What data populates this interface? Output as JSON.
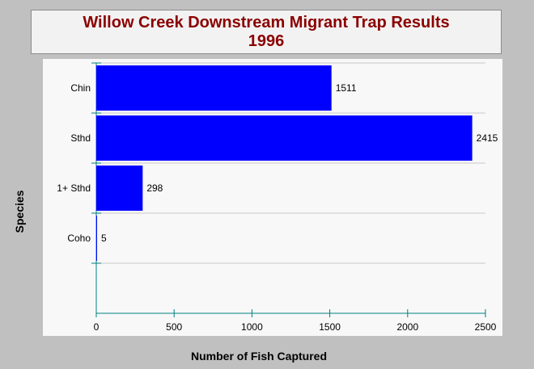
{
  "chart_title": {
    "line1": "Willow Creek Downstream Migrant Trap Results",
    "line2": "1996"
  },
  "colors": {
    "bar": "#0000ff",
    "title": "#8b0000",
    "axis": "#008080",
    "grid": "#c8c8c8"
  },
  "chart_data": {
    "type": "bar",
    "orientation": "horizontal",
    "categories": [
      "Chin",
      "Sthd",
      "1+ Sthd",
      "Coho"
    ],
    "values": [
      1511,
      2415,
      298,
      5
    ],
    "xlabel": "Number of Fish Captured",
    "ylabel": "Species",
    "xlim": [
      0,
      2500
    ],
    "xticks": [
      0,
      500,
      1000,
      1500,
      2000,
      2500
    ],
    "grid": true,
    "legend": "none"
  }
}
